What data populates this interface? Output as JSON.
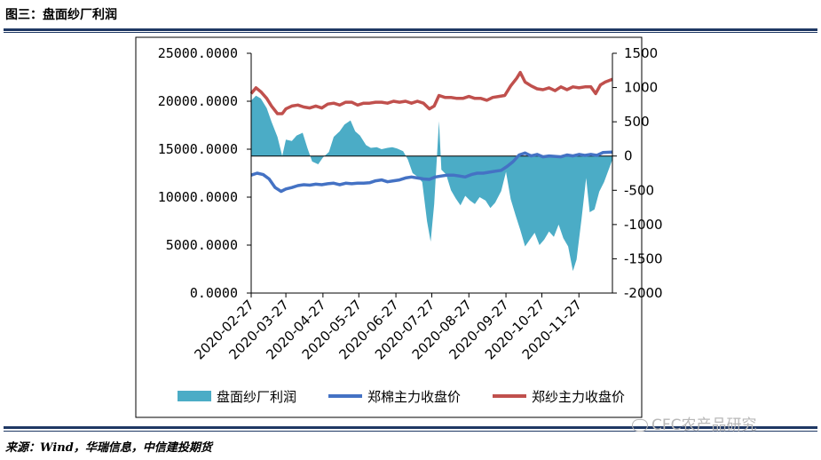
{
  "figure": {
    "title": "图三：盘面纱厂利润",
    "source": "来源：Wind，华瑞信息，中信建投期货",
    "watermark": "CFC农产品研究"
  },
  "chart_data": {
    "type": "line",
    "title": "",
    "x": [
      "2020-02-27",
      "2020-03-27",
      "2020-04-27",
      "2020-05-27",
      "2020-06-27",
      "2020-07-27",
      "2020-08-27",
      "2020-09-27",
      "2020-10-27",
      "2020-11-27"
    ],
    "x_range": [
      "2020-02-27",
      "2020-12-25"
    ],
    "y_left": {
      "ticks": [
        "25000.0000",
        "20000.0000",
        "15000.0000",
        "10000.0000",
        "5000.0000",
        "0.0000"
      ],
      "ylim": [
        0,
        25000
      ]
    },
    "y_right": {
      "ticks": [
        "1500",
        "1000",
        "500",
        "0",
        "-500",
        "-1000",
        "-1500",
        "-2000"
      ],
      "ylim": [
        -2000,
        1500
      ]
    },
    "legend_position": "bottom",
    "series": [
      {
        "name": "盘面纱厂利润",
        "kind": "area",
        "axis": "right",
        "color": "#4bacc6",
        "points": [
          [
            "2020-02-27",
            810
          ],
          [
            "2020-03-02",
            880
          ],
          [
            "2020-03-06",
            840
          ],
          [
            "2020-03-11",
            700
          ],
          [
            "2020-03-15",
            500
          ],
          [
            "2020-03-20",
            280
          ],
          [
            "2020-03-24",
            0
          ],
          [
            "2020-03-27",
            240
          ],
          [
            "2020-04-01",
            220
          ],
          [
            "2020-04-05",
            300
          ],
          [
            "2020-04-10",
            340
          ],
          [
            "2020-04-14",
            120
          ],
          [
            "2020-04-18",
            -80
          ],
          [
            "2020-04-23",
            -120
          ],
          [
            "2020-04-27",
            -20
          ],
          [
            "2020-05-02",
            60
          ],
          [
            "2020-05-06",
            280
          ],
          [
            "2020-05-11",
            360
          ],
          [
            "2020-05-15",
            460
          ],
          [
            "2020-05-20",
            520
          ],
          [
            "2020-05-24",
            360
          ],
          [
            "2020-05-28",
            300
          ],
          [
            "2020-06-02",
            160
          ],
          [
            "2020-06-06",
            120
          ],
          [
            "2020-06-11",
            130
          ],
          [
            "2020-06-15",
            100
          ],
          [
            "2020-06-20",
            120
          ],
          [
            "2020-06-24",
            130
          ],
          [
            "2020-06-28",
            110
          ],
          [
            "2020-07-03",
            70
          ],
          [
            "2020-07-07",
            -50
          ],
          [
            "2020-07-11",
            -250
          ],
          [
            "2020-07-15",
            -300
          ],
          [
            "2020-07-19",
            -380
          ],
          [
            "2020-07-23",
            -950
          ],
          [
            "2020-07-26",
            -1250
          ],
          [
            "2020-07-29",
            -700
          ],
          [
            "2020-08-02",
            510
          ],
          [
            "2020-08-04",
            -200
          ],
          [
            "2020-08-08",
            -270
          ],
          [
            "2020-08-12",
            -500
          ],
          [
            "2020-08-16",
            -620
          ],
          [
            "2020-08-20",
            -720
          ],
          [
            "2020-08-24",
            -580
          ],
          [
            "2020-08-28",
            -650
          ],
          [
            "2020-09-01",
            -700
          ],
          [
            "2020-09-05",
            -600
          ],
          [
            "2020-09-10",
            -650
          ],
          [
            "2020-09-14",
            -760
          ],
          [
            "2020-09-18",
            -680
          ],
          [
            "2020-09-23",
            -510
          ],
          [
            "2020-09-27",
            -230
          ],
          [
            "2020-10-01",
            -630
          ],
          [
            "2020-10-05",
            -860
          ],
          [
            "2020-10-09",
            -1080
          ],
          [
            "2020-10-13",
            -1320
          ],
          [
            "2020-10-17",
            -1220
          ],
          [
            "2020-10-21",
            -1120
          ],
          [
            "2020-10-25",
            -1300
          ],
          [
            "2020-10-29",
            -1220
          ],
          [
            "2020-11-02",
            -1100
          ],
          [
            "2020-11-06",
            -1180
          ],
          [
            "2020-11-10",
            -1000
          ],
          [
            "2020-11-14",
            -1200
          ],
          [
            "2020-11-18",
            -1320
          ],
          [
            "2020-11-22",
            -1680
          ],
          [
            "2020-11-25",
            -1510
          ],
          [
            "2020-11-29",
            -940
          ],
          [
            "2020-12-03",
            -320
          ],
          [
            "2020-12-06",
            -820
          ],
          [
            "2020-12-10",
            -780
          ],
          [
            "2020-12-14",
            -520
          ],
          [
            "2020-12-18",
            -380
          ],
          [
            "2020-12-25",
            -50
          ]
        ]
      },
      {
        "name": "郑棉主力收盘价",
        "kind": "line",
        "axis": "left",
        "color": "#4472c4",
        "points": [
          [
            "2020-02-27",
            12300
          ],
          [
            "2020-03-03",
            12500
          ],
          [
            "2020-03-08",
            12350
          ],
          [
            "2020-03-13",
            11900
          ],
          [
            "2020-03-18",
            11000
          ],
          [
            "2020-03-23",
            10600
          ],
          [
            "2020-03-27",
            10850
          ],
          [
            "2020-04-01",
            11000
          ],
          [
            "2020-04-06",
            11200
          ],
          [
            "2020-04-11",
            11300
          ],
          [
            "2020-04-16",
            11250
          ],
          [
            "2020-04-21",
            11350
          ],
          [
            "2020-04-26",
            11300
          ],
          [
            "2020-05-01",
            11400
          ],
          [
            "2020-05-06",
            11450
          ],
          [
            "2020-05-11",
            11300
          ],
          [
            "2020-05-16",
            11450
          ],
          [
            "2020-05-21",
            11400
          ],
          [
            "2020-05-26",
            11450
          ],
          [
            "2020-05-31",
            11450
          ],
          [
            "2020-06-05",
            11500
          ],
          [
            "2020-06-10",
            11700
          ],
          [
            "2020-06-15",
            11800
          ],
          [
            "2020-06-20",
            11600
          ],
          [
            "2020-06-25",
            11700
          ],
          [
            "2020-06-30",
            11800
          ],
          [
            "2020-07-05",
            12000
          ],
          [
            "2020-07-10",
            12100
          ],
          [
            "2020-07-15",
            12000
          ],
          [
            "2020-07-20",
            11900
          ],
          [
            "2020-07-25",
            11850
          ],
          [
            "2020-07-30",
            12100
          ],
          [
            "2020-08-04",
            12200
          ],
          [
            "2020-08-09",
            12300
          ],
          [
            "2020-08-14",
            12300
          ],
          [
            "2020-08-19",
            12200
          ],
          [
            "2020-08-24",
            12100
          ],
          [
            "2020-08-29",
            12350
          ],
          [
            "2020-09-03",
            12500
          ],
          [
            "2020-09-08",
            12500
          ],
          [
            "2020-09-13",
            12600
          ],
          [
            "2020-09-18",
            12700
          ],
          [
            "2020-09-23",
            12800
          ],
          [
            "2020-09-28",
            13200
          ],
          [
            "2020-10-03",
            13700
          ],
          [
            "2020-10-08",
            14400
          ],
          [
            "2020-10-13",
            14600
          ],
          [
            "2020-10-18",
            14300
          ],
          [
            "2020-10-23",
            14450
          ],
          [
            "2020-10-28",
            14200
          ],
          [
            "2020-11-02",
            14300
          ],
          [
            "2020-11-07",
            14250
          ],
          [
            "2020-11-12",
            14200
          ],
          [
            "2020-11-17",
            14400
          ],
          [
            "2020-11-22",
            14300
          ],
          [
            "2020-11-27",
            14450
          ],
          [
            "2020-12-02",
            14350
          ],
          [
            "2020-12-07",
            14450
          ],
          [
            "2020-12-12",
            14350
          ],
          [
            "2020-12-17",
            14650
          ],
          [
            "2020-12-25",
            14700
          ]
        ]
      },
      {
        "name": "郑纱主力收盘价",
        "kind": "line",
        "axis": "left",
        "color": "#c0504d",
        "points": [
          [
            "2020-02-27",
            20800
          ],
          [
            "2020-03-02",
            21400
          ],
          [
            "2020-03-06",
            21000
          ],
          [
            "2020-03-11",
            20300
          ],
          [
            "2020-03-15",
            19500
          ],
          [
            "2020-03-20",
            18700
          ],
          [
            "2020-03-24",
            18700
          ],
          [
            "2020-03-27",
            19200
          ],
          [
            "2020-04-01",
            19500
          ],
          [
            "2020-04-06",
            19600
          ],
          [
            "2020-04-11",
            19400
          ],
          [
            "2020-04-16",
            19300
          ],
          [
            "2020-04-21",
            19500
          ],
          [
            "2020-04-26",
            19300
          ],
          [
            "2020-05-01",
            19700
          ],
          [
            "2020-05-06",
            19800
          ],
          [
            "2020-05-11",
            19600
          ],
          [
            "2020-05-16",
            19900
          ],
          [
            "2020-05-21",
            19900
          ],
          [
            "2020-05-26",
            19600
          ],
          [
            "2020-05-31",
            19800
          ],
          [
            "2020-06-05",
            19800
          ],
          [
            "2020-06-10",
            19900
          ],
          [
            "2020-06-15",
            19900
          ],
          [
            "2020-06-20",
            19800
          ],
          [
            "2020-06-25",
            20000
          ],
          [
            "2020-06-30",
            19900
          ],
          [
            "2020-07-05",
            20000
          ],
          [
            "2020-07-10",
            19800
          ],
          [
            "2020-07-15",
            20000
          ],
          [
            "2020-07-20",
            19800
          ],
          [
            "2020-07-25",
            19200
          ],
          [
            "2020-07-29",
            19500
          ],
          [
            "2020-08-02",
            20600
          ],
          [
            "2020-08-07",
            20400
          ],
          [
            "2020-08-12",
            20400
          ],
          [
            "2020-08-17",
            20300
          ],
          [
            "2020-08-22",
            20300
          ],
          [
            "2020-08-27",
            20500
          ],
          [
            "2020-09-01",
            20300
          ],
          [
            "2020-09-06",
            20300
          ],
          [
            "2020-09-11",
            20100
          ],
          [
            "2020-09-16",
            20400
          ],
          [
            "2020-09-21",
            20500
          ],
          [
            "2020-09-26",
            20600
          ],
          [
            "2020-10-01",
            21600
          ],
          [
            "2020-10-06",
            22400
          ],
          [
            "2020-10-09",
            23000
          ],
          [
            "2020-10-13",
            22000
          ],
          [
            "2020-10-18",
            21600
          ],
          [
            "2020-10-23",
            21300
          ],
          [
            "2020-10-28",
            21200
          ],
          [
            "2020-11-02",
            21400
          ],
          [
            "2020-11-07",
            21100
          ],
          [
            "2020-11-12",
            21500
          ],
          [
            "2020-11-17",
            21200
          ],
          [
            "2020-11-22",
            21500
          ],
          [
            "2020-11-27",
            21400
          ],
          [
            "2020-12-02",
            21500
          ],
          [
            "2020-12-07",
            21500
          ],
          [
            "2020-12-11",
            20800
          ],
          [
            "2020-12-15",
            21700
          ],
          [
            "2020-12-19",
            22000
          ],
          [
            "2020-12-25",
            22300
          ]
        ]
      }
    ]
  }
}
